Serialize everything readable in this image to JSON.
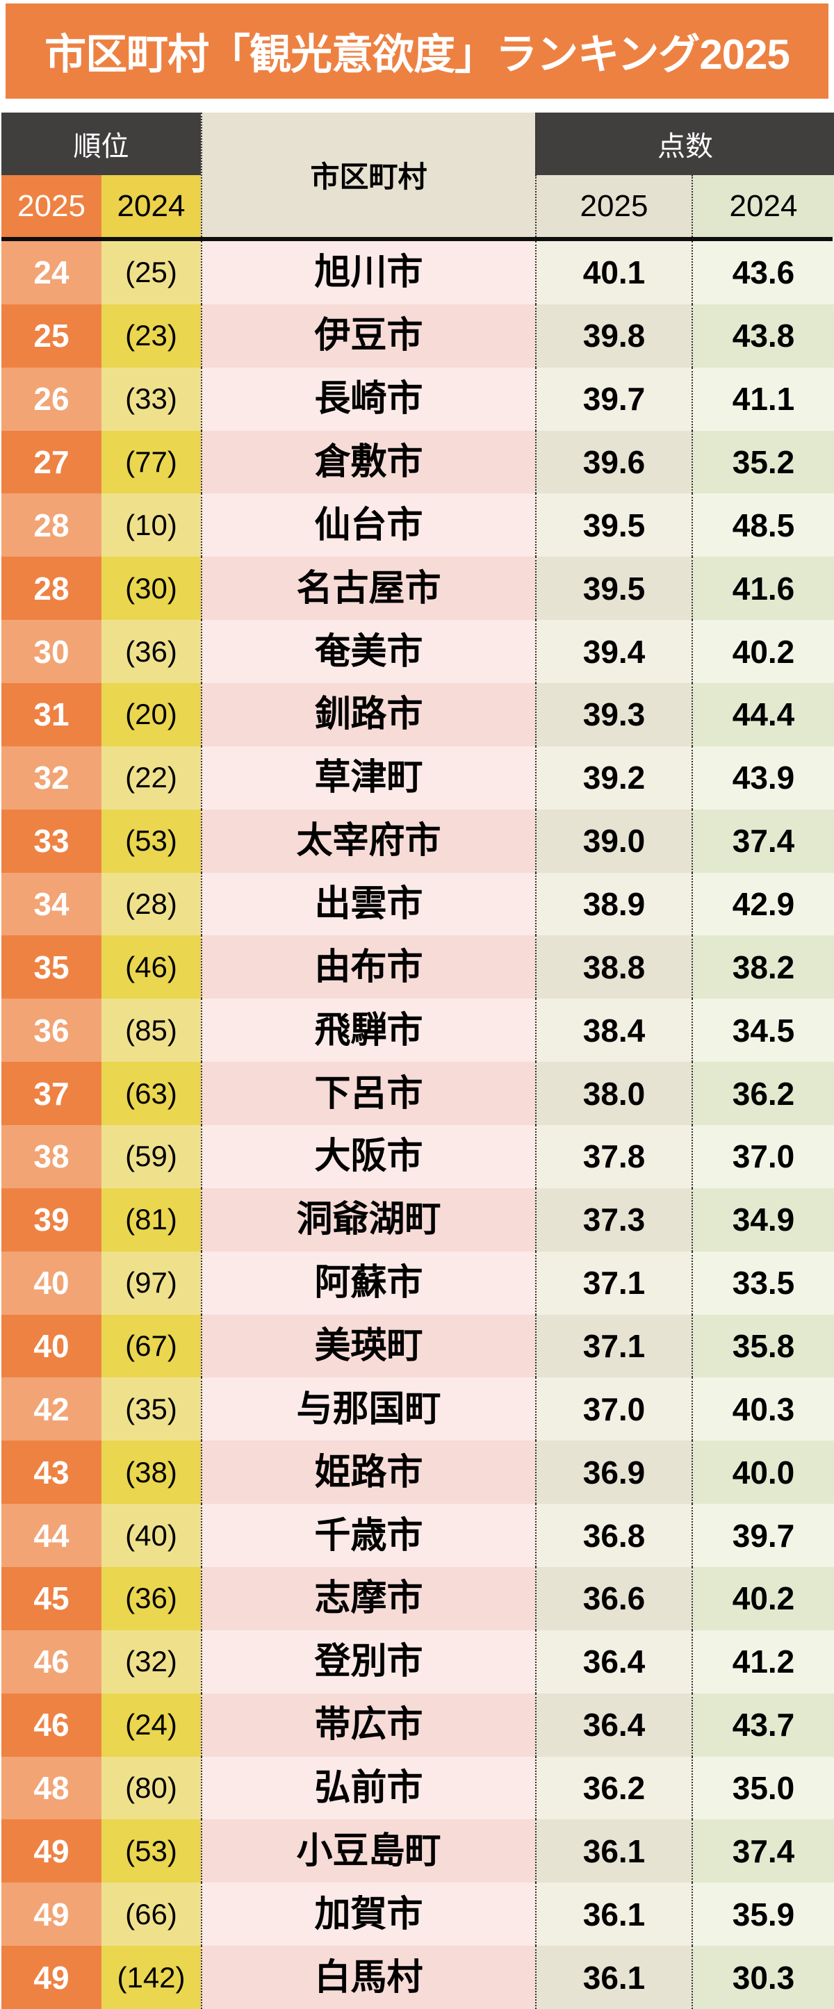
{
  "title": "市区町村「観光意欲度」ランキング2025",
  "table": {
    "header": {
      "rank_group": "順位",
      "municipality": "市区町村",
      "score_group": "点数",
      "rank_2025": "2025",
      "rank_2024": "2024",
      "score_2025": "2025",
      "score_2024": "2024"
    },
    "rows": [
      {
        "rank_2025": "24",
        "rank_2024": "(25)",
        "municipality": "旭川市",
        "score_2025": "40.1",
        "score_2024": "43.6"
      },
      {
        "rank_2025": "25",
        "rank_2024": "(23)",
        "municipality": "伊豆市",
        "score_2025": "39.8",
        "score_2024": "43.8"
      },
      {
        "rank_2025": "26",
        "rank_2024": "(33)",
        "municipality": "長崎市",
        "score_2025": "39.7",
        "score_2024": "41.1"
      },
      {
        "rank_2025": "27",
        "rank_2024": "(77)",
        "municipality": "倉敷市",
        "score_2025": "39.6",
        "score_2024": "35.2"
      },
      {
        "rank_2025": "28",
        "rank_2024": "(10)",
        "municipality": "仙台市",
        "score_2025": "39.5",
        "score_2024": "48.5"
      },
      {
        "rank_2025": "28",
        "rank_2024": "(30)",
        "municipality": "名古屋市",
        "score_2025": "39.5",
        "score_2024": "41.6"
      },
      {
        "rank_2025": "30",
        "rank_2024": "(36)",
        "municipality": "奄美市",
        "score_2025": "39.4",
        "score_2024": "40.2"
      },
      {
        "rank_2025": "31",
        "rank_2024": "(20)",
        "municipality": "釧路市",
        "score_2025": "39.3",
        "score_2024": "44.4"
      },
      {
        "rank_2025": "32",
        "rank_2024": "(22)",
        "municipality": "草津町",
        "score_2025": "39.2",
        "score_2024": "43.9"
      },
      {
        "rank_2025": "33",
        "rank_2024": "(53)",
        "municipality": "太宰府市",
        "score_2025": "39.0",
        "score_2024": "37.4"
      },
      {
        "rank_2025": "34",
        "rank_2024": "(28)",
        "municipality": "出雲市",
        "score_2025": "38.9",
        "score_2024": "42.9"
      },
      {
        "rank_2025": "35",
        "rank_2024": "(46)",
        "municipality": "由布市",
        "score_2025": "38.8",
        "score_2024": "38.2"
      },
      {
        "rank_2025": "36",
        "rank_2024": "(85)",
        "municipality": "飛騨市",
        "score_2025": "38.4",
        "score_2024": "34.5"
      },
      {
        "rank_2025": "37",
        "rank_2024": "(63)",
        "municipality": "下呂市",
        "score_2025": "38.0",
        "score_2024": "36.2"
      },
      {
        "rank_2025": "38",
        "rank_2024": "(59)",
        "municipality": "大阪市",
        "score_2025": "37.8",
        "score_2024": "37.0"
      },
      {
        "rank_2025": "39",
        "rank_2024": "(81)",
        "municipality": "洞爺湖町",
        "score_2025": "37.3",
        "score_2024": "34.9"
      },
      {
        "rank_2025": "40",
        "rank_2024": "(97)",
        "municipality": "阿蘇市",
        "score_2025": "37.1",
        "score_2024": "33.5"
      },
      {
        "rank_2025": "40",
        "rank_2024": "(67)",
        "municipality": "美瑛町",
        "score_2025": "37.1",
        "score_2024": "35.8"
      },
      {
        "rank_2025": "42",
        "rank_2024": "(35)",
        "municipality": "与那国町",
        "score_2025": "37.0",
        "score_2024": "40.3"
      },
      {
        "rank_2025": "43",
        "rank_2024": "(38)",
        "municipality": "姫路市",
        "score_2025": "36.9",
        "score_2024": "40.0"
      },
      {
        "rank_2025": "44",
        "rank_2024": "(40)",
        "municipality": "千歳市",
        "score_2025": "36.8",
        "score_2024": "39.7"
      },
      {
        "rank_2025": "45",
        "rank_2024": "(36)",
        "municipality": "志摩市",
        "score_2025": "36.6",
        "score_2024": "40.2"
      },
      {
        "rank_2025": "46",
        "rank_2024": "(32)",
        "municipality": "登別市",
        "score_2025": "36.4",
        "score_2024": "41.2"
      },
      {
        "rank_2025": "46",
        "rank_2024": "(24)",
        "municipality": "帯広市",
        "score_2025": "36.4",
        "score_2024": "43.7"
      },
      {
        "rank_2025": "48",
        "rank_2024": "(80)",
        "municipality": "弘前市",
        "score_2025": "36.2",
        "score_2024": "35.0"
      },
      {
        "rank_2025": "49",
        "rank_2024": "(53)",
        "municipality": "小豆島町",
        "score_2025": "36.1",
        "score_2024": "37.4"
      },
      {
        "rank_2025": "49",
        "rank_2024": "(66)",
        "municipality": "加賀市",
        "score_2025": "36.1",
        "score_2024": "35.9"
      },
      {
        "rank_2025": "49",
        "rank_2024": "(142)",
        "municipality": "白馬村",
        "score_2025": "36.1",
        "score_2024": "30.3"
      }
    ]
  },
  "colors": {
    "banner_bg": "#ED8142",
    "banner_text": "#FFFFFF",
    "header_dark_bg": "#413E3E",
    "subheader_rank2025_bg": "#EE8243",
    "subheader_rank2024_bg": "#ECD14B",
    "municipality_header_bg": "#E6E1D0",
    "subheader_score2025_bg": "#E5E1D0",
    "subheader_score2024_bg": "#E0E7CD",
    "rank2025_row_light": "#F2A474",
    "rank2025_row_dark": "#EE8243",
    "rank2024_row_light": "#EFE18C",
    "rank2024_row_dark": "#EAD64F",
    "municipality_row_light": "#FBEAE8",
    "municipality_row_dark": "#F7DBD7",
    "score2025_row_light": "#F2EFE3",
    "score2025_row_dark": "#E7E3D3",
    "score2024_row_light": "#F2F4E5",
    "score2024_row_dark": "#E3E9CF"
  },
  "chart_data": {
    "type": "table",
    "title": "市区町村「観光意欲度」ランキング2025",
    "columns": [
      "順位 2025",
      "順位 2024",
      "市区町村",
      "点数 2025",
      "点数 2024"
    ],
    "rows": [
      [
        24,
        25,
        "旭川市",
        40.1,
        43.6
      ],
      [
        25,
        23,
        "伊豆市",
        39.8,
        43.8
      ],
      [
        26,
        33,
        "長崎市",
        39.7,
        41.1
      ],
      [
        27,
        77,
        "倉敷市",
        39.6,
        35.2
      ],
      [
        28,
        10,
        "仙台市",
        39.5,
        48.5
      ],
      [
        28,
        30,
        "名古屋市",
        39.5,
        41.6
      ],
      [
        30,
        36,
        "奄美市",
        39.4,
        40.2
      ],
      [
        31,
        20,
        "釧路市",
        39.3,
        44.4
      ],
      [
        32,
        22,
        "草津町",
        39.2,
        43.9
      ],
      [
        33,
        53,
        "太宰府市",
        39.0,
        37.4
      ],
      [
        34,
        28,
        "出雲市",
        38.9,
        42.9
      ],
      [
        35,
        46,
        "由布市",
        38.8,
        38.2
      ],
      [
        36,
        85,
        "飛騨市",
        38.4,
        34.5
      ],
      [
        37,
        63,
        "下呂市",
        38.0,
        36.2
      ],
      [
        38,
        59,
        "大阪市",
        37.8,
        37.0
      ],
      [
        39,
        81,
        "洞爺湖町",
        37.3,
        34.9
      ],
      [
        40,
        97,
        "阿蘇市",
        37.1,
        33.5
      ],
      [
        40,
        67,
        "美瑛町",
        37.1,
        35.8
      ],
      [
        42,
        35,
        "与那国町",
        37.0,
        40.3
      ],
      [
        43,
        38,
        "姫路市",
        36.9,
        40.0
      ],
      [
        44,
        40,
        "千歳市",
        36.8,
        39.7
      ],
      [
        45,
        36,
        "志摩市",
        36.6,
        40.2
      ],
      [
        46,
        32,
        "登別市",
        36.4,
        41.2
      ],
      [
        46,
        24,
        "帯広市",
        36.4,
        43.7
      ],
      [
        48,
        80,
        "弘前市",
        36.2,
        35.0
      ],
      [
        49,
        53,
        "小豆島町",
        36.1,
        37.4
      ],
      [
        49,
        66,
        "加賀市",
        36.1,
        35.9
      ],
      [
        49,
        142,
        "白馬村",
        36.1,
        30.3
      ]
    ]
  }
}
